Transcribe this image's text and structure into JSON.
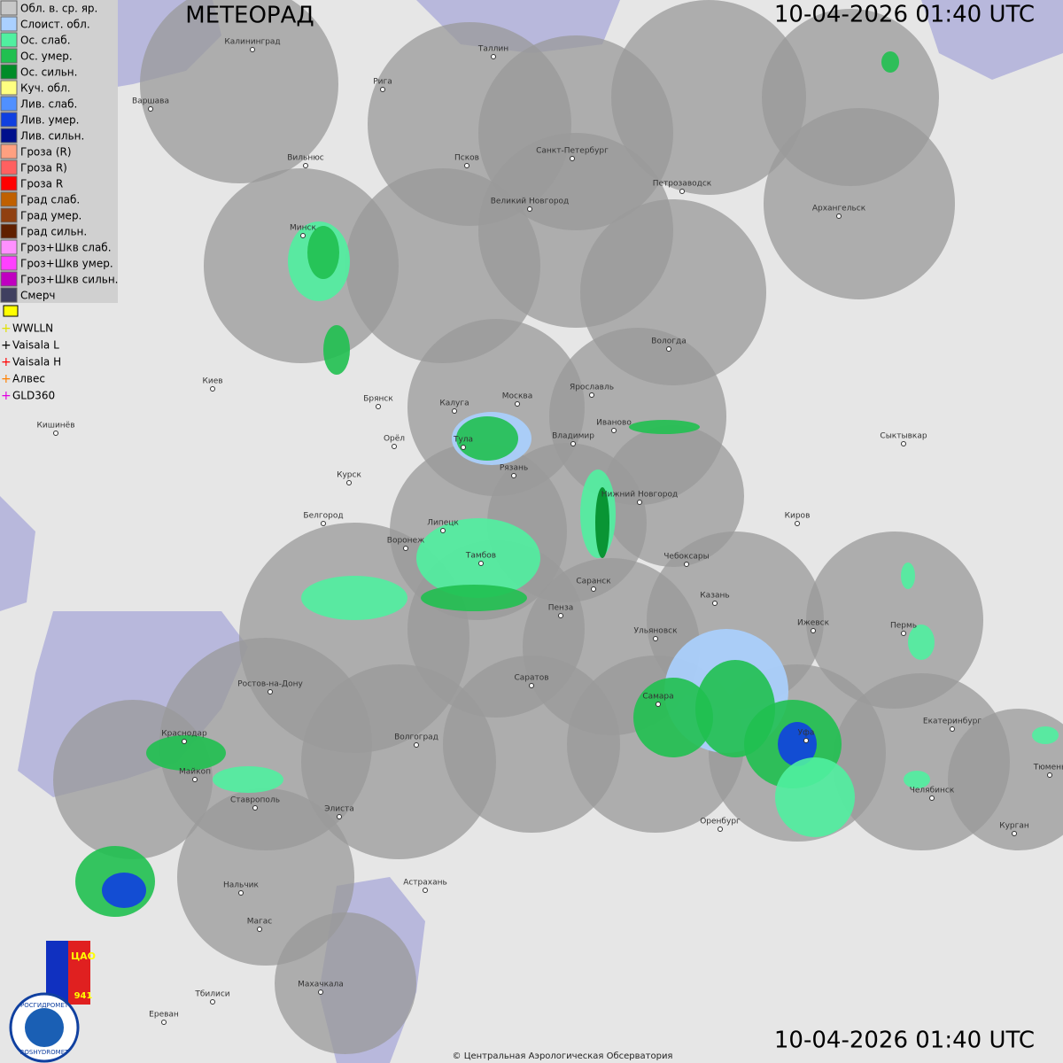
{
  "header": {
    "title": "МЕТЕОРАД",
    "timestamp_top": "10-04-2026  01:40 UTC",
    "timestamp_bottom": "10-04-2026  01:40 UTC"
  },
  "legend": [
    {
      "label": "Обл. в. ср. яр.",
      "color": "#c8c8c8"
    },
    {
      "label": "Слоист. обл.",
      "color": "#aad0ff"
    },
    {
      "label": "Ос. слаб.",
      "color": "#50f0a0"
    },
    {
      "label": "Ос. умер.",
      "color": "#20c050"
    },
    {
      "label": "Ос. сильн.",
      "color": "#008c28"
    },
    {
      "label": "Куч. обл.",
      "color": "#ffff80"
    },
    {
      "label": "Лив. слаб.",
      "color": "#5090ff"
    },
    {
      "label": "Лив. умер.",
      "color": "#1040e0"
    },
    {
      "label": "Лив. сильн.",
      "color": "#00108c"
    },
    {
      "label": "Гроза (R)",
      "color": "#ffa080"
    },
    {
      "label": "Гроза R)",
      "color": "#ff6060"
    },
    {
      "label": "Гроза R",
      "color": "#ff0000"
    },
    {
      "label": "Град слаб.",
      "color": "#c06000"
    },
    {
      "label": "Град умер.",
      "color": "#904010"
    },
    {
      "label": "Град сильн.",
      "color": "#602000"
    },
    {
      "label": "Гроз+Шкв слаб.",
      "color": "#ff90ff"
    },
    {
      "label": "Гроз+Шкв умер.",
      "color": "#ff40ff"
    },
    {
      "label": "Гроз+Шкв сильн.",
      "color": "#c000c0"
    },
    {
      "label": "Смерч",
      "color": "#404060"
    }
  ],
  "lightning": [
    {
      "label": "WWLLN",
      "color": "#e0e000"
    },
    {
      "label": "Vaisala L",
      "color": "#000000"
    },
    {
      "label": "Vaisala H",
      "color": "#ff0000"
    },
    {
      "label": "Алвес",
      "color": "#ff8000"
    },
    {
      "label": "GLD360",
      "color": "#e000e0"
    }
  ],
  "cities": [
    "Калининград",
    "Таллин",
    "Рига",
    "Варшава",
    "Вильнюс",
    "Псков",
    "Санкт-Петербург",
    "Петрозаводск",
    "Архангельск",
    "Великий Новгород",
    "Минск",
    "Вологда",
    "Ярославль",
    "Киев",
    "Брянск",
    "Калуга",
    "Москва",
    "Иваново",
    "Кишинёв",
    "Орёл",
    "Тула",
    "Владимир",
    "Сыктывкар",
    "Рязань",
    "Курск",
    "Нижний Новгород",
    "Белгород",
    "Киров",
    "Липецк",
    "Воронеж",
    "Тамбов",
    "Чебоксары",
    "Саранск",
    "Казань",
    "Пермь",
    "Пенза",
    "Ижевск",
    "Ульяновск",
    "Ростов-на-Дону",
    "Саратов",
    "Самара",
    "Екатеринбург",
    "Уфа",
    "Краснодар",
    "Волгоград",
    "Тюмень",
    "Майкоп",
    "Челябинск",
    "Ставрополь",
    "Элиста",
    "Оренбург",
    "Курган",
    "Астрахань",
    "Нальчик",
    "Магас",
    "Махачкала",
    "Тбилиси",
    "Ереван"
  ],
  "logo": {
    "name_ru": "РОСГИДРОМЕТ",
    "name_en": "ROSHYDROMET",
    "org": "ЦАО",
    "number": "941"
  },
  "footer": {
    "copyright": "© Центральная Аэрологическая Обсерватория"
  }
}
